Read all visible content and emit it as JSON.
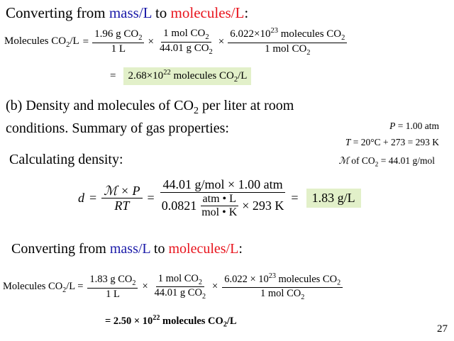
{
  "slide": {
    "page_number": "27",
    "heading1": {
      "pre": "Converting from ",
      "mass": "mass/L",
      "mid": " to ",
      "molecules": "molecules/L",
      "post": ":"
    },
    "eq1": {
      "lhs": "Molecules CO",
      "lhs_sub": "2",
      "lhs_tail": "/L",
      "eq": "=",
      "times": "×",
      "f1_num": "1.96 g CO",
      "f1_num_sub": "2",
      "f1_den": "1 L",
      "f2_num": "1 mol CO",
      "f2_num_sub": "2",
      "f2_den": "44.01 g CO",
      "f2_den_sub": "2",
      "f3_num_a": "6.022×10",
      "f3_num_sup": "23",
      "f3_num_b": " molecules CO",
      "f3_num_sub": "2",
      "f3_den": "1 mol CO",
      "f3_den_sub": "2",
      "result_eq": "=",
      "result_a": "2.68×10",
      "result_sup": "22",
      "result_b": " molecules CO",
      "result_sub": "2",
      "result_c": "/L"
    },
    "part_b": {
      "line1_a": "(b) Density and molecules of CO",
      "line1_sub": "2",
      "line1_b": " per liter at room",
      "line2": "conditions. Summary of gas properties:"
    },
    "properties": {
      "p_sym": "P",
      "p_val": " = 1.00 atm",
      "t_sym": "T",
      "t_val": " = 20°C + 273 = 293 K",
      "m_sym": "ℳ",
      "m_val_a": " of CO",
      "m_sub": "2",
      "m_val_b": " = 44.01 g/mol"
    },
    "density_heading": "Calculating density:",
    "eq2": {
      "d": "d",
      "eq": "=",
      "f1_num": "ℳ × P",
      "f1_den": "RT",
      "f2_num": "44.01 g/mol × 1.00 atm",
      "f2_den_a": "0.0821",
      "inner_num": "atm • L",
      "inner_den": "mol • K",
      "f2_den_b": "× 293 K",
      "result": "1.83 g/L"
    },
    "heading2": {
      "pre": "Converting from ",
      "mass": "mass/L",
      "mid": " to ",
      "molecules": "molecules/L",
      "post": ":"
    },
    "eq3": {
      "lhs": "Molecules CO",
      "lhs_sub": "2",
      "lhs_tail": "/L =",
      "times": "×",
      "f1_num": "1.83 g CO",
      "f1_num_sub": "2",
      "f1_den": "1 L",
      "f2_num": "1 mol CO",
      "f2_num_sub": "2",
      "f2_den": "44.01 g CO",
      "f2_den_sub": "2",
      "f3_num_a": "6.022 × 10",
      "f3_num_sup": "23",
      "f3_num_b": " molecules CO",
      "f3_num_sub": "2",
      "f3_den": "1 mol CO",
      "f3_den_sub": "2",
      "result_a": "= 2.50 × 10",
      "result_sup": "22",
      "result_b": " molecules CO",
      "result_sub": "2",
      "result_c": "/L"
    },
    "colors": {
      "mass": "#1a1aa8",
      "molecules": "#e8141d",
      "highlight": "#e2f0c9"
    }
  }
}
